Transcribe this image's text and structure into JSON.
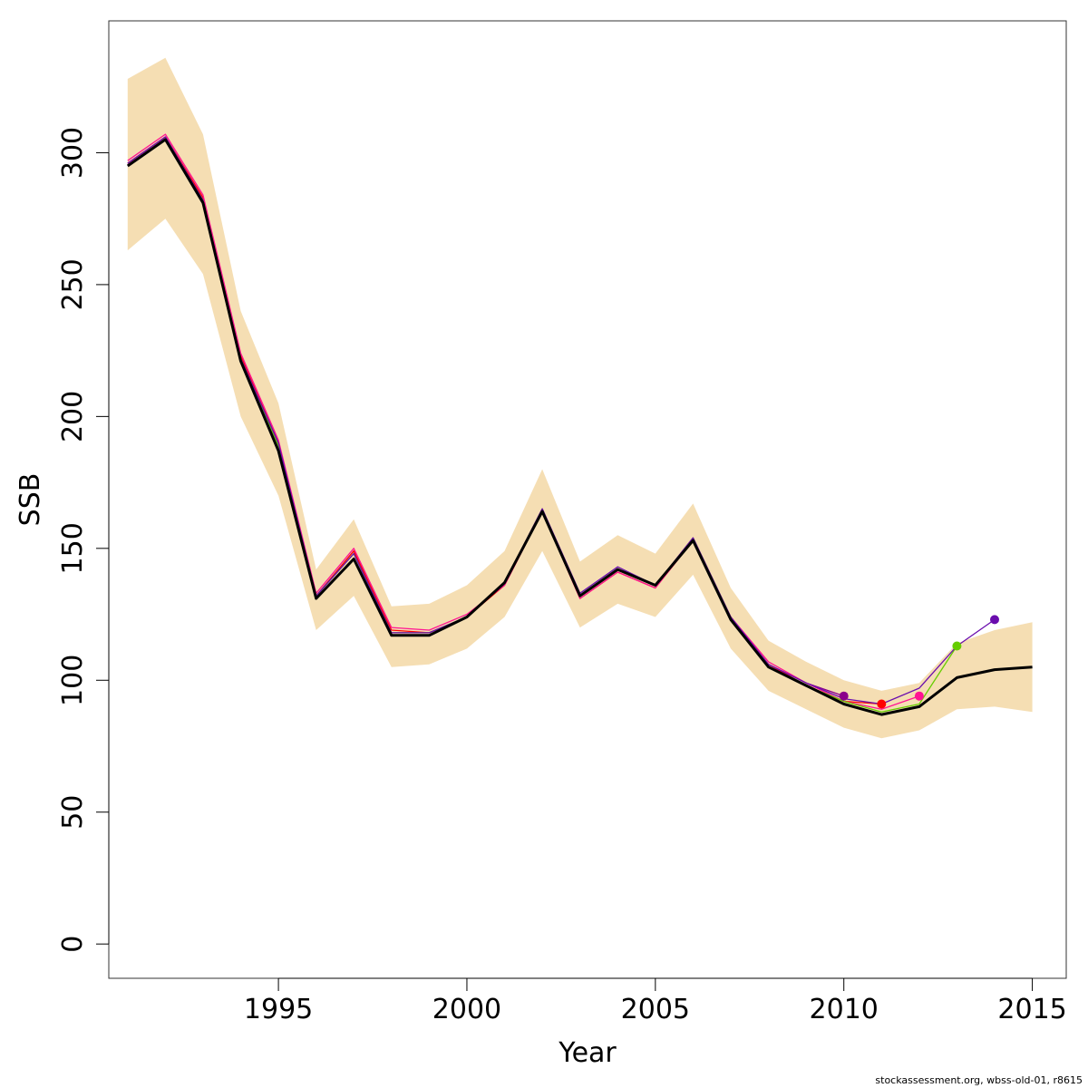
{
  "chart_data": {
    "type": "line",
    "title": "",
    "xlabel": "Year",
    "ylabel": "SSB",
    "xlim": [
      1990.5,
      2015.9
    ],
    "ylim": [
      -13,
      350
    ],
    "x_ticks": [
      1995,
      2000,
      2005,
      2010,
      2015
    ],
    "y_ticks": [
      0,
      50,
      100,
      150,
      200,
      250,
      300
    ],
    "grid": false,
    "legend": "none",
    "band_color": "#F5DEB3",
    "confidence_band": {
      "x": [
        1991,
        1992,
        1993,
        1994,
        1995,
        1996,
        1997,
        1998,
        1999,
        2000,
        2001,
        2002,
        2003,
        2004,
        2005,
        2006,
        2007,
        2008,
        2009,
        2010,
        2011,
        2012,
        2013,
        2014,
        2015
      ],
      "lower": [
        263,
        275,
        254,
        200,
        170,
        119,
        132,
        105,
        106,
        112,
        124,
        149,
        120,
        129,
        124,
        140,
        112,
        96,
        89,
        82,
        78,
        81,
        89,
        90,
        88
      ],
      "upper": [
        328,
        336,
        307,
        240,
        205,
        142,
        161,
        128,
        129,
        136,
        149,
        180,
        145,
        155,
        148,
        167,
        135,
        115,
        107,
        100,
        96,
        99,
        114,
        119,
        122
      ]
    },
    "series": [
      {
        "color": "#000000",
        "x": [
          1991,
          1992,
          1993,
          1994,
          1995,
          1996,
          1997,
          1998,
          1999,
          2000,
          2001,
          2002,
          2003,
          2004,
          2005,
          2006,
          2007,
          2008,
          2009,
          2010,
          2011,
          2012,
          2013,
          2014,
          2015
        ],
        "values": [
          295,
          305,
          281,
          221,
          187,
          131,
          146,
          117,
          117,
          124,
          137,
          164,
          132,
          142,
          136,
          153,
          123,
          105,
          98,
          91,
          87,
          90,
          101,
          104,
          105
        ]
      },
      {
        "color": "#8B008B",
        "x": [
          1991,
          1992,
          1993,
          1994,
          1995,
          1996,
          1997,
          1998,
          1999,
          2000,
          2001,
          2002,
          2003,
          2004,
          2005,
          2006,
          2007,
          2008,
          2009,
          2010
        ],
        "values": [
          296,
          306,
          282,
          223,
          189,
          132,
          149,
          118,
          118,
          124,
          137,
          165,
          132,
          142,
          136,
          154,
          124,
          106,
          99,
          94
        ]
      },
      {
        "color": "#FF0000",
        "x": [
          1991,
          1992,
          1993,
          1994,
          1995,
          1996,
          1997,
          1998,
          1999,
          2000,
          2001,
          2002,
          2003,
          2004,
          2005,
          2006,
          2007,
          2008,
          2009,
          2010,
          2011
        ],
        "values": [
          296,
          306,
          283,
          223,
          190,
          132,
          149,
          119,
          118,
          124,
          136,
          164,
          131,
          141,
          135,
          153,
          124,
          106,
          98,
          92,
          91
        ]
      },
      {
        "color": "#FF1493",
        "x": [
          1991,
          1992,
          1993,
          1994,
          1995,
          1996,
          1997,
          1998,
          1999,
          2000,
          2001,
          2002,
          2003,
          2004,
          2005,
          2006,
          2007,
          2008,
          2009,
          2010,
          2011,
          2012
        ],
        "values": [
          297,
          307,
          284,
          224,
          191,
          133,
          150,
          120,
          119,
          125,
          136,
          164,
          131,
          141,
          135,
          153,
          124,
          107,
          99,
          92,
          89,
          94
        ]
      },
      {
        "color": "#66CD00",
        "x": [
          1991,
          1992,
          1993,
          1994,
          1995,
          1996,
          1997,
          1998,
          1999,
          2000,
          2001,
          2002,
          2003,
          2004,
          2005,
          2006,
          2007,
          2008,
          2009,
          2010,
          2011,
          2012,
          2013
        ],
        "values": [
          295,
          305,
          282,
          222,
          189,
          132,
          148,
          118,
          118,
          124,
          137,
          165,
          132,
          142,
          136,
          154,
          124,
          105,
          98,
          92,
          88,
          91,
          113
        ]
      },
      {
        "color": "#6A0DAD",
        "x": [
          1991,
          1992,
          1993,
          1994,
          1995,
          1996,
          1997,
          1998,
          1999,
          2000,
          2001,
          2002,
          2003,
          2004,
          2005,
          2006,
          2007,
          2008,
          2009,
          2010,
          2011,
          2012,
          2013,
          2014
        ],
        "values": [
          296,
          306,
          282,
          222,
          190,
          132,
          148,
          118,
          118,
          124,
          137,
          165,
          133,
          143,
          136,
          154,
          124,
          106,
          99,
          93,
          91,
          97,
          113,
          123
        ]
      }
    ],
    "end_points": [
      {
        "x": 2010,
        "y": 94,
        "color": "#8B008B"
      },
      {
        "x": 2011,
        "y": 91,
        "color": "#FF0000"
      },
      {
        "x": 2012,
        "y": 94,
        "color": "#FF1493"
      },
      {
        "x": 2013,
        "y": 113,
        "color": "#66CD00"
      },
      {
        "x": 2014,
        "y": 123,
        "color": "#6A0DAD"
      }
    ]
  },
  "footer_text": "stockassessment.org, wbss-old-01, r8615"
}
